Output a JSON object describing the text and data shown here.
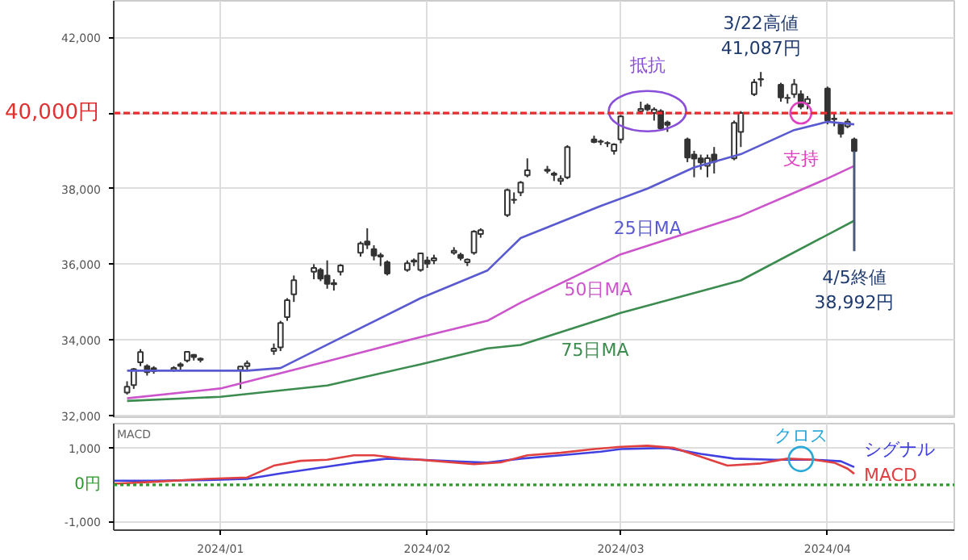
{
  "chart_data": [
    {
      "type": "candlestick",
      "x": [
        "2023-12-18",
        "2023-12-19",
        "2023-12-20",
        "2023-12-21",
        "2023-12-22",
        "2023-12-25",
        "2023-12-26",
        "2023-12-27",
        "2023-12-28",
        "2023-12-29",
        "2024-01-04",
        "2024-01-05",
        "2024-01-09",
        "2024-01-10",
        "2024-01-11",
        "2024-01-12",
        "2024-01-15",
        "2024-01-16",
        "2024-01-17",
        "2024-01-18",
        "2024-01-19",
        "2024-01-22",
        "2024-01-23",
        "2024-01-24",
        "2024-01-25",
        "2024-01-26",
        "2024-01-29",
        "2024-01-30",
        "2024-01-31",
        "2024-02-01",
        "2024-02-02",
        "2024-02-05",
        "2024-02-06",
        "2024-02-07",
        "2024-02-08",
        "2024-02-09",
        "2024-02-13",
        "2024-02-14",
        "2024-02-15",
        "2024-02-16",
        "2024-02-19",
        "2024-02-20",
        "2024-02-21",
        "2024-02-22",
        "2024-02-26",
        "2024-02-27",
        "2024-02-28",
        "2024-02-29",
        "2024-03-01",
        "2024-03-04",
        "2024-03-05",
        "2024-03-06",
        "2024-03-07",
        "2024-03-08",
        "2024-03-11",
        "2024-03-12",
        "2024-03-13",
        "2024-03-14",
        "2024-03-15",
        "2024-03-18",
        "2024-03-19",
        "2024-03-21",
        "2024-03-22",
        "2024-03-25",
        "2024-03-26",
        "2024-03-27",
        "2024-03-28",
        "2024-03-29",
        "2024-04-01",
        "2024-04-02",
        "2024-04-03",
        "2024-04-04",
        "2024-04-05"
      ],
      "ohlc": [
        [
          32600,
          32900,
          32550,
          32758
        ],
        [
          32800,
          33250,
          32700,
          33219
        ],
        [
          33400,
          33750,
          33300,
          33675
        ],
        [
          33300,
          33350,
          33050,
          33140
        ],
        [
          33250,
          33300,
          33100,
          33169
        ],
        [
          33200,
          33300,
          33150,
          33254
        ],
        [
          33350,
          33400,
          33200,
          33305
        ],
        [
          33450,
          33700,
          33400,
          33681
        ],
        [
          33600,
          33620,
          33450,
          33539
        ],
        [
          33500,
          33530,
          33400,
          33464
        ],
        [
          33200,
          33300,
          32700,
          33288
        ],
        [
          33300,
          33450,
          33200,
          33377
        ],
        [
          33700,
          33900,
          33600,
          33763
        ],
        [
          33800,
          34500,
          33700,
          34441
        ],
        [
          34600,
          35100,
          34500,
          35049
        ],
        [
          35200,
          35700,
          35000,
          35577
        ],
        [
          35800,
          36000,
          35600,
          35901
        ],
        [
          35850,
          35900,
          35550,
          35619
        ],
        [
          35700,
          36100,
          35350,
          35477
        ],
        [
          35500,
          35600,
          35300,
          35466
        ],
        [
          35800,
          36000,
          35700,
          35963
        ],
        [
          36300,
          36600,
          36200,
          36546
        ],
        [
          36600,
          36950,
          36400,
          36517
        ],
        [
          36400,
          36500,
          36100,
          36226
        ],
        [
          36200,
          36300,
          35950,
          36236
        ],
        [
          36050,
          36100,
          35700,
          35751
        ],
        [
          35850,
          36100,
          35800,
          36026
        ],
        [
          36100,
          36150,
          35950,
          36065
        ],
        [
          35850,
          36300,
          35800,
          36286
        ],
        [
          36100,
          36200,
          35900,
          36011
        ],
        [
          36100,
          36250,
          36000,
          36158
        ],
        [
          36300,
          36450,
          36250,
          36354
        ],
        [
          36250,
          36300,
          36100,
          36160
        ],
        [
          36050,
          36150,
          35950,
          36119
        ],
        [
          36300,
          36900,
          36250,
          36863
        ],
        [
          36800,
          36950,
          36700,
          36897
        ],
        [
          37300,
          38000,
          37250,
          37963
        ],
        [
          37700,
          37900,
          37600,
          37703
        ],
        [
          37900,
          38200,
          37800,
          38157
        ],
        [
          38350,
          38800,
          38300,
          38487
        ],
        [
          38500,
          38600,
          38400,
          38470
        ],
        [
          38400,
          38450,
          38200,
          38363
        ],
        [
          38200,
          38350,
          38100,
          38262
        ],
        [
          38300,
          39150,
          38250,
          39098
        ],
        [
          39300,
          39400,
          39200,
          39233
        ],
        [
          39250,
          39300,
          39150,
          39239
        ],
        [
          39200,
          39250,
          39100,
          39208
        ],
        [
          39000,
          39200,
          38900,
          39166
        ],
        [
          39300,
          39950,
          39200,
          39910
        ],
        [
          40050,
          40300,
          40000,
          40109
        ],
        [
          40200,
          40250,
          40050,
          40097
        ],
        [
          40000,
          40150,
          39800,
          40090
        ],
        [
          40050,
          40100,
          39550,
          39598
        ],
        [
          39750,
          39800,
          39500,
          39688
        ],
        [
          39300,
          39350,
          38700,
          38820
        ],
        [
          38900,
          39000,
          38300,
          38797
        ],
        [
          38800,
          38900,
          38500,
          38695
        ],
        [
          38600,
          38900,
          38300,
          38807
        ],
        [
          38900,
          39100,
          38400,
          38707
        ],
        [
          38800,
          39800,
          38750,
          39740
        ],
        [
          39500,
          40050,
          39100,
          40003
        ],
        [
          40500,
          40900,
          40450,
          40815
        ],
        [
          40900,
          41087,
          40700,
          40888
        ],
        [
          40750,
          40800,
          40300,
          40414
        ],
        [
          40400,
          40500,
          40250,
          40398
        ],
        [
          40500,
          40900,
          40400,
          40762
        ],
        [
          40500,
          40600,
          40100,
          40168
        ],
        [
          40250,
          40450,
          40100,
          40369
        ],
        [
          40650,
          40700,
          39700,
          39803
        ],
        [
          39850,
          40000,
          39650,
          39838
        ],
        [
          39700,
          39750,
          39350,
          39451
        ],
        [
          39650,
          39850,
          39600,
          39773
        ],
        [
          39300,
          39350,
          38950,
          38992
        ]
      ],
      "series": [
        {
          "type": "line",
          "name": "25日MA",
          "color": "#5a5ad0",
          "x": [
            "2023-12-18",
            "2024-01-05",
            "2024-01-10",
            "2024-01-17",
            "2024-01-31",
            "2024-02-10",
            "2024-02-15",
            "2024-02-27",
            "2024-03-05",
            "2024-03-12",
            "2024-03-19",
            "2024-03-27",
            "2024-04-01",
            "2024-04-05"
          ],
          "values": [
            33180,
            33180,
            33250,
            33870,
            35100,
            35830,
            36690,
            37540,
            38000,
            38560,
            38910,
            39550,
            39770,
            39700
          ]
        },
        {
          "type": "line",
          "name": "50日MA",
          "color": "#cc55cc",
          "x": [
            "2023-12-18",
            "2024-01-01",
            "2024-01-17",
            "2024-01-31",
            "2024-02-10",
            "2024-02-15",
            "2024-03-01",
            "2024-03-19",
            "2024-04-01",
            "2024-04-05"
          ],
          "values": [
            32450,
            32710,
            33430,
            34070,
            34500,
            34980,
            36260,
            37280,
            38270,
            38600
          ]
        },
        {
          "type": "line",
          "name": "75日MA",
          "color": "#3c8c50",
          "x": [
            "2023-12-18",
            "2024-01-01",
            "2024-01-17",
            "2024-01-31",
            "2024-02-10",
            "2024-02-15",
            "2024-03-01",
            "2024-03-19",
            "2024-04-05"
          ],
          "values": [
            32380,
            32490,
            32790,
            33350,
            33770,
            33860,
            34710,
            35570,
            37150
          ]
        }
      ],
      "ref_lines": [
        {
          "axis": "y",
          "value": 40000,
          "label": "40,000円",
          "color": "#e03030",
          "line_style": "dashed"
        }
      ],
      "annotations": [
        {
          "text": "3/22高値\n41,087円",
          "x": "2024-03-22",
          "y": 41087
        },
        {
          "text": "抵抗",
          "x": "2024-03-05",
          "y": 40050
        },
        {
          "text": "支持",
          "x": "2024-03-28",
          "y": 40000
        },
        {
          "text": "4/5終値\n38,992円",
          "x": "2024-04-05",
          "y": 38992
        }
      ],
      "xlim": [
        "2023-12-16",
        "2024-04-20"
      ],
      "xticks": [
        {
          "value": "2024-01-01",
          "label": null
        },
        {
          "value": "2024-02-01",
          "label": null
        },
        {
          "value": "2024-03-01",
          "label": null
        },
        {
          "value": "2024-04-01",
          "label": null
        }
      ],
      "ylim": [
        31950,
        42970
      ],
      "yticks": [
        {
          "value": 32000,
          "label": "32,000"
        },
        {
          "value": 34000,
          "label": "34,000"
        },
        {
          "value": 36000,
          "label": "36,000"
        },
        {
          "value": 38000,
          "label": "38,000"
        },
        {
          "value": 40000,
          "label": null
        },
        {
          "value": 42000,
          "label": "42,000"
        }
      ],
      "tick_labels": "y",
      "grid": true
    },
    {
      "type": "line",
      "title": "MACD",
      "series": [
        {
          "name": "シグナル",
          "color": "#4040e0",
          "x": [
            "2023-12-16",
            "2023-12-22",
            "2023-12-30",
            "2024-01-05",
            "2024-01-10",
            "2024-01-15",
            "2024-01-21",
            "2024-01-26",
            "2024-01-31",
            "2024-02-06",
            "2024-02-10",
            "2024-02-15",
            "2024-02-21",
            "2024-02-27",
            "2024-03-01",
            "2024-03-08",
            "2024-03-13",
            "2024-03-18",
            "2024-03-24",
            "2024-03-30",
            "2024-04-03",
            "2024-04-05"
          ],
          "values": [
            110,
            110,
            130,
            160,
            310,
            440,
            600,
            710,
            680,
            630,
            600,
            710,
            800,
            900,
            970,
            1000,
            840,
            710,
            680,
            680,
            640,
            480
          ]
        },
        {
          "name": "MACD",
          "color": "#e04040",
          "x": [
            "2023-12-16",
            "2023-12-22",
            "2023-12-30",
            "2024-01-05",
            "2024-01-09",
            "2024-01-13",
            "2024-01-17",
            "2024-01-21",
            "2024-01-24",
            "2024-01-28",
            "2024-02-02",
            "2024-02-08",
            "2024-02-12",
            "2024-02-16",
            "2024-02-21",
            "2024-02-26",
            "2024-03-01",
            "2024-03-05",
            "2024-03-09",
            "2024-03-13",
            "2024-03-17",
            "2024-03-22",
            "2024-03-26",
            "2024-03-30",
            "2024-04-02",
            "2024-04-04",
            "2024-04-05"
          ],
          "values": [
            30,
            80,
            160,
            200,
            520,
            650,
            680,
            800,
            800,
            720,
            650,
            560,
            610,
            800,
            870,
            970,
            1030,
            1060,
            1000,
            760,
            520,
            580,
            710,
            680,
            600,
            440,
            300
          ]
        }
      ],
      "ref_lines": [
        {
          "axis": "y",
          "value": 0,
          "label": "0円",
          "color": "#2a9a2a",
          "line_style": "dotted"
        }
      ],
      "annotations": [
        {
          "text": "クロス",
          "x": "2024-03-28",
          "y": 700
        }
      ],
      "xlim": [
        "2023-12-16",
        "2024-04-20"
      ],
      "xticks": [
        {
          "value": "2024-01-01",
          "label": "2024/01"
        },
        {
          "value": "2024-02-01",
          "label": "2024/02"
        },
        {
          "value": "2024-03-01",
          "label": "2024/03"
        },
        {
          "value": "2024-04-01",
          "label": "2024/04"
        }
      ],
      "ylim": [
        -1230,
        1660
      ],
      "yticks": [
        {
          "value": -1000,
          "label": "-1,000"
        },
        {
          "value": 1000,
          "label": "1,000"
        }
      ],
      "grid": true
    }
  ]
}
